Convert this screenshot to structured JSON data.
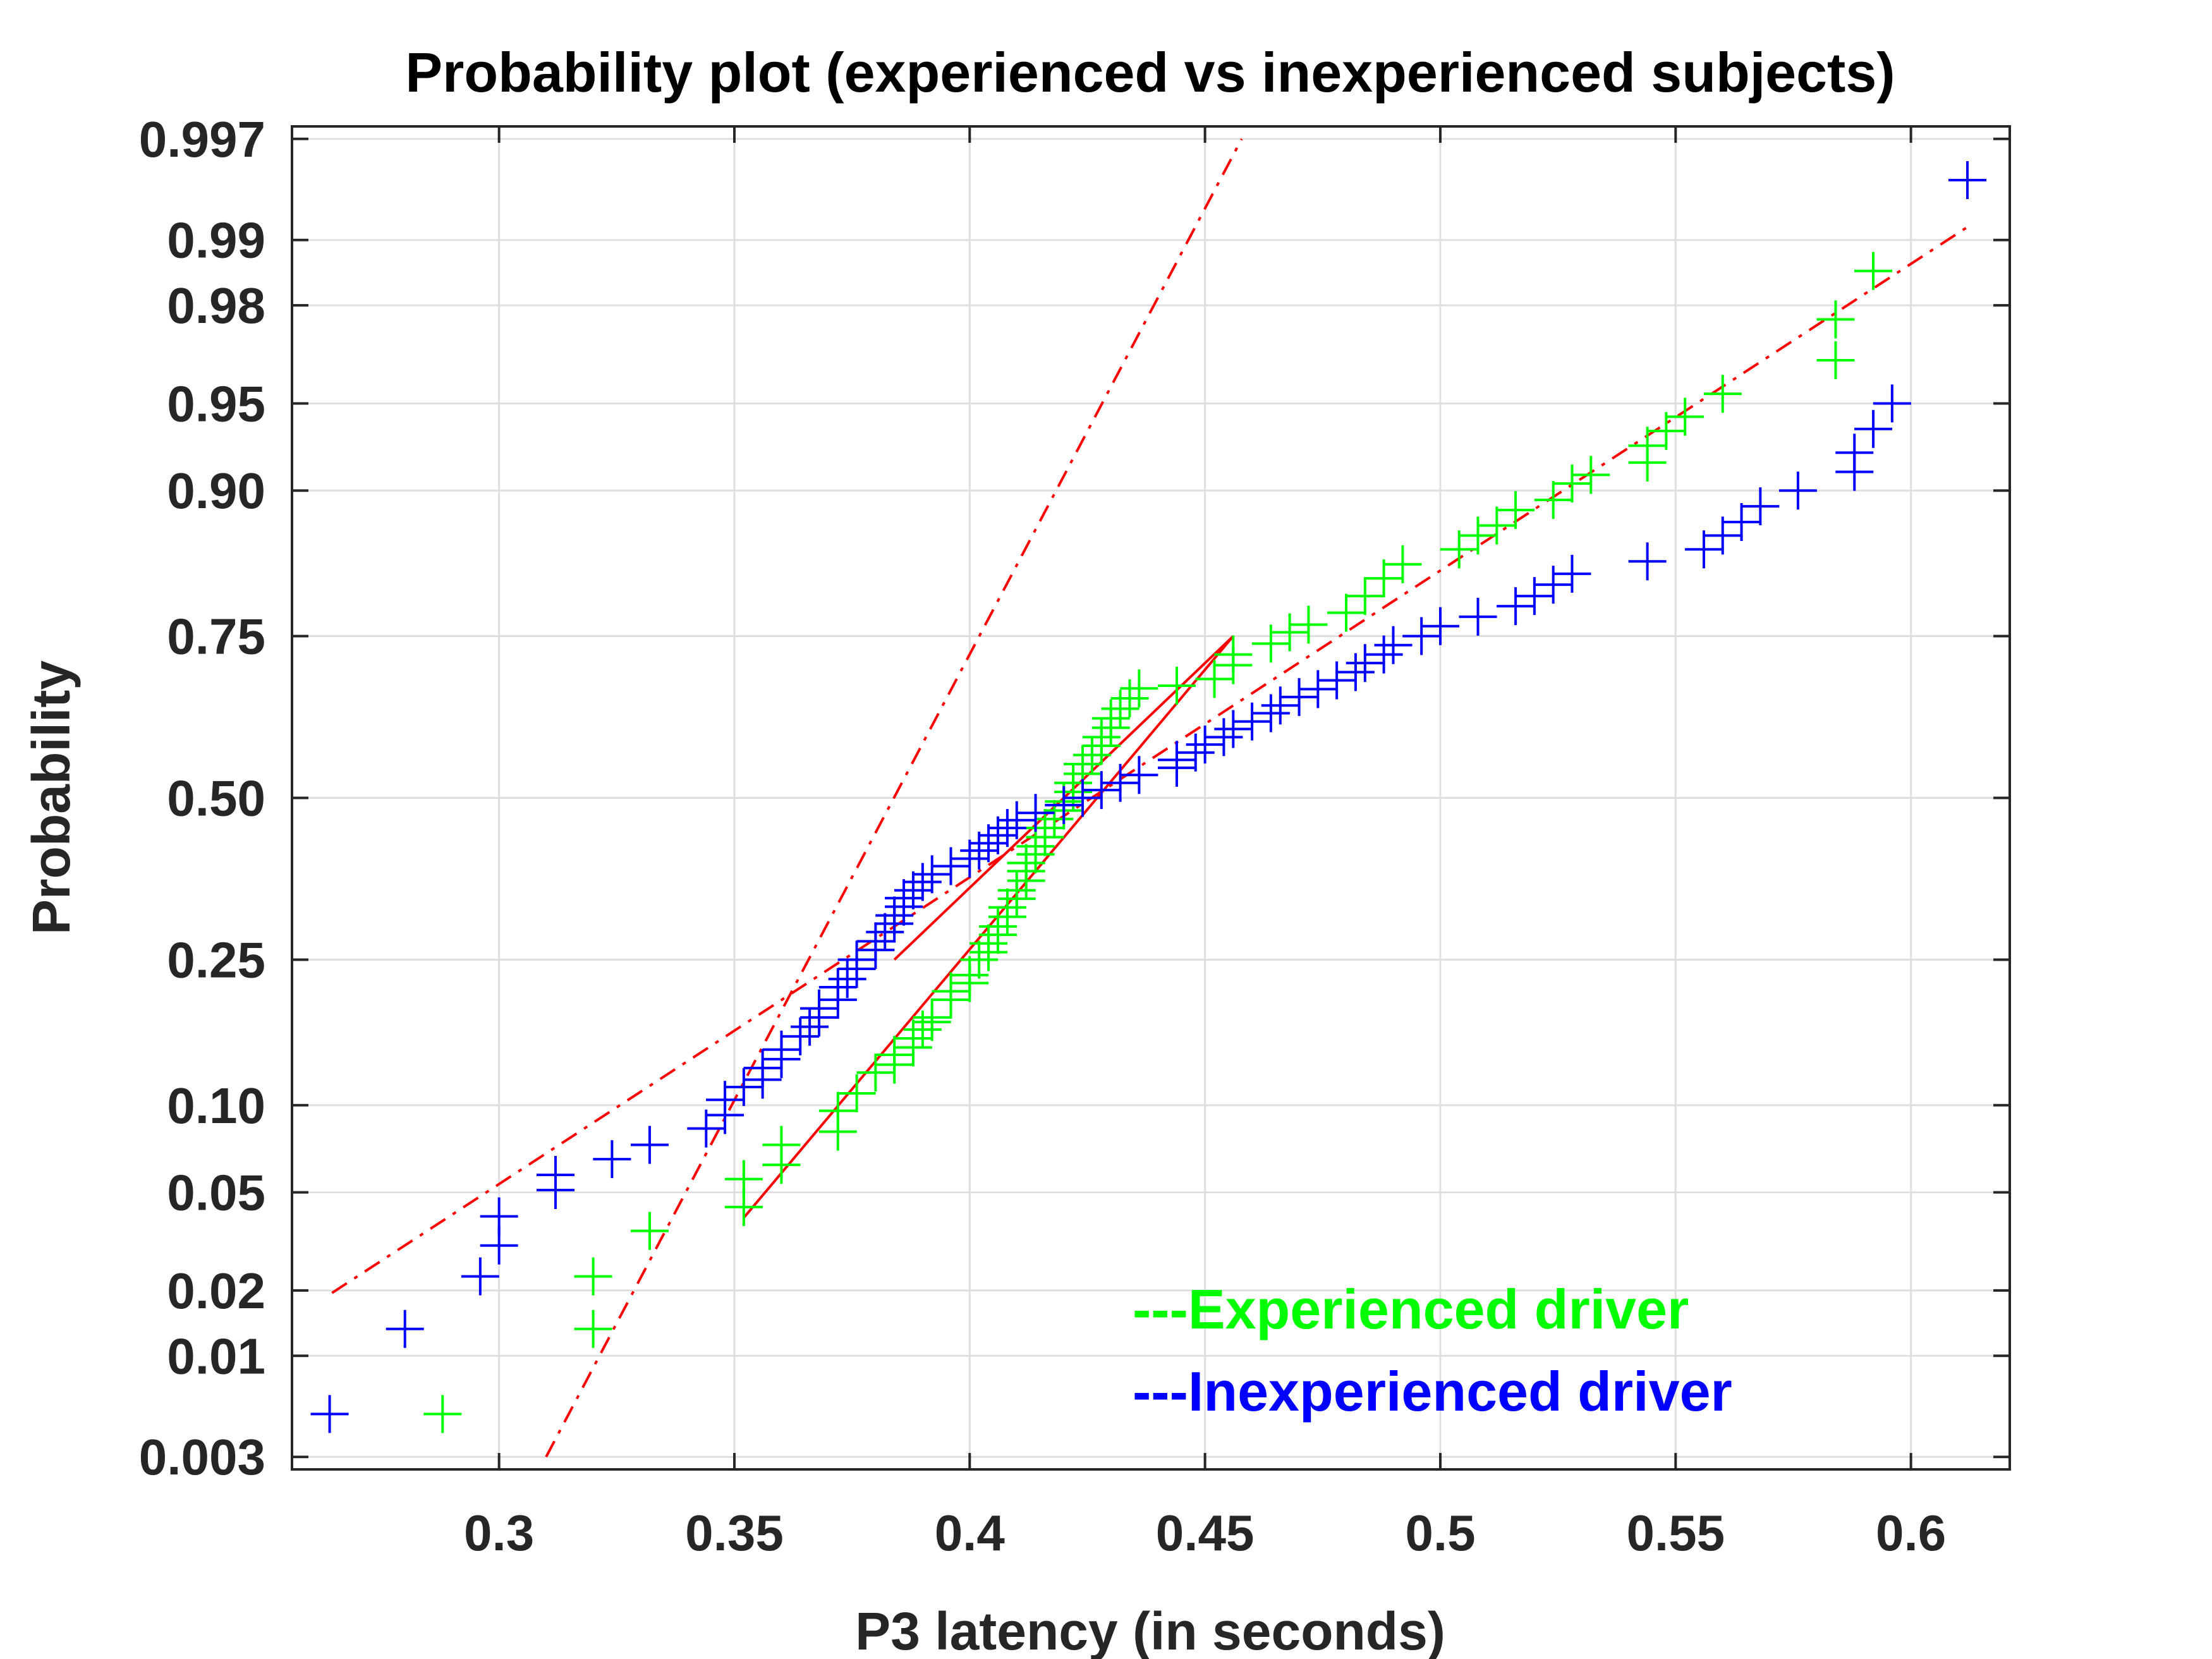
{
  "chart_data": {
    "type": "scatter",
    "title": "Probability plot (experienced vs inexperienced subjects)",
    "xlabel": "P3 latency (in seconds)",
    "ylabel": "Probability",
    "xlim": [
      0.256,
      0.621
    ],
    "x_ticks": [
      0.3,
      0.35,
      0.4,
      0.45,
      0.5,
      0.55,
      0.6
    ],
    "x_tick_labels": [
      "0.3",
      "0.35",
      "0.4",
      "0.45",
      "0.5",
      "0.55",
      "0.6"
    ],
    "y_scale": "normal-probability",
    "y_ticks": [
      0.003,
      0.01,
      0.02,
      0.05,
      0.1,
      0.25,
      0.5,
      0.75,
      0.9,
      0.95,
      0.98,
      0.99,
      0.997
    ],
    "y_tick_labels": [
      "0.003",
      "0.01",
      "0.02",
      "0.05",
      "0.10",
      "0.25",
      "0.50",
      "0.75",
      "0.90",
      "0.95",
      "0.98",
      "0.99",
      "0.997"
    ],
    "grid": true,
    "legend": {
      "position": "bottom-right",
      "entries": [
        {
          "label": "---Experienced driver",
          "color": "#00ff00"
        },
        {
          "label": "---Inexperienced driver",
          "color": "#0000ff"
        }
      ]
    },
    "series": [
      {
        "name": "Experienced driver",
        "color": "#00ff00",
        "marker": "+",
        "x": [
          0.288,
          0.32,
          0.32,
          0.332,
          0.352,
          0.352,
          0.36,
          0.36,
          0.372,
          0.372,
          0.376,
          0.38,
          0.384,
          0.384,
          0.388,
          0.388,
          0.39,
          0.392,
          0.392,
          0.396,
          0.396,
          0.4,
          0.4,
          0.402,
          0.404,
          0.404,
          0.406,
          0.406,
          0.408,
          0.408,
          0.41,
          0.41,
          0.412,
          0.412,
          0.412,
          0.414,
          0.414,
          0.416,
          0.416,
          0.418,
          0.42,
          0.42,
          0.422,
          0.422,
          0.424,
          0.424,
          0.426,
          0.428,
          0.428,
          0.43,
          0.43,
          0.432,
          0.434,
          0.436,
          0.444,
          0.452,
          0.456,
          0.456,
          0.464,
          0.468,
          0.472,
          0.48,
          0.484,
          0.488,
          0.492,
          0.504,
          0.508,
          0.512,
          0.516,
          0.524,
          0.528,
          0.532,
          0.544,
          0.544,
          0.548,
          0.552,
          0.56,
          0.584,
          0.584,
          0.592
        ],
        "p": [
          0.0051,
          0.0134,
          0.023,
          0.0355,
          0.044,
          0.056,
          0.063,
          0.074,
          0.082,
          0.096,
          0.109,
          0.126,
          0.133,
          0.142,
          0.149,
          0.158,
          0.167,
          0.175,
          0.18,
          0.2,
          0.21,
          0.22,
          0.23,
          0.25,
          0.26,
          0.272,
          0.284,
          0.296,
          0.31,
          0.324,
          0.337,
          0.35,
          0.365,
          0.38,
          0.393,
          0.407,
          0.42,
          0.435,
          0.45,
          0.465,
          0.479,
          0.494,
          0.51,
          0.525,
          0.54,
          0.556,
          0.571,
          0.586,
          0.6,
          0.615,
          0.63,
          0.645,
          0.661,
          0.676,
          0.68,
          0.69,
          0.71,
          0.725,
          0.74,
          0.755,
          0.765,
          0.78,
          0.8,
          0.82,
          0.835,
          0.85,
          0.863,
          0.872,
          0.885,
          0.893,
          0.905,
          0.911,
          0.919,
          0.929,
          0.937,
          0.944,
          0.954,
          0.966,
          0.977,
          0.986
        ]
      },
      {
        "name": "Inexperienced driver",
        "color": "#0000ff",
        "marker": "+",
        "x": [
          0.264,
          0.28,
          0.296,
          0.3,
          0.3,
          0.312,
          0.312,
          0.324,
          0.332,
          0.344,
          0.348,
          0.348,
          0.352,
          0.356,
          0.356,
          0.36,
          0.36,
          0.364,
          0.366,
          0.368,
          0.368,
          0.372,
          0.372,
          0.374,
          0.376,
          0.376,
          0.38,
          0.38,
          0.382,
          0.384,
          0.384,
          0.386,
          0.386,
          0.388,
          0.39,
          0.392,
          0.396,
          0.4,
          0.402,
          0.404,
          0.406,
          0.408,
          0.41,
          0.414,
          0.42,
          0.424,
          0.428,
          0.432,
          0.436,
          0.444,
          0.444,
          0.448,
          0.45,
          0.454,
          0.456,
          0.46,
          0.464,
          0.466,
          0.47,
          0.474,
          0.478,
          0.482,
          0.484,
          0.488,
          0.49,
          0.496,
          0.5,
          0.508,
          0.516,
          0.52,
          0.524,
          0.528,
          0.544,
          0.556,
          0.56,
          0.564,
          0.568,
          0.576,
          0.588,
          0.588,
          0.592,
          0.596,
          0.612
        ],
        "p": [
          0.0051,
          0.0134,
          0.023,
          0.031,
          0.0405,
          0.051,
          0.058,
          0.066,
          0.074,
          0.084,
          0.093,
          0.104,
          0.114,
          0.12,
          0.13,
          0.138,
          0.147,
          0.16,
          0.17,
          0.18,
          0.19,
          0.2,
          0.215,
          0.225,
          0.238,
          0.25,
          0.263,
          0.275,
          0.288,
          0.3,
          0.312,
          0.325,
          0.338,
          0.35,
          0.363,
          0.375,
          0.388,
          0.4,
          0.413,
          0.425,
          0.438,
          0.45,
          0.463,
          0.475,
          0.488,
          0.5,
          0.513,
          0.525,
          0.538,
          0.55,
          0.563,
          0.575,
          0.588,
          0.6,
          0.613,
          0.625,
          0.638,
          0.65,
          0.663,
          0.675,
          0.688,
          0.7,
          0.713,
          0.725,
          0.738,
          0.75,
          0.763,
          0.775,
          0.788,
          0.8,
          0.813,
          0.825,
          0.838,
          0.85,
          0.863,
          0.875,
          0.888,
          0.9,
          0.913,
          0.925,
          0.938,
          0.95,
          0.995
        ]
      }
    ],
    "reference_lines": [
      {
        "name": "Experienced fit",
        "color": "#ff0000",
        "style": "dash-dot",
        "x": [
          0.31,
          0.4578
        ],
        "p": [
          0.003,
          0.997
        ]
      },
      {
        "name": "Inexperienced fit",
        "color": "#ff0000",
        "style": "dash-dot",
        "x": [
          0.2645,
          0.6125
        ],
        "p": [
          0.0195,
          0.9915
        ]
      }
    ],
    "quartile_lines": [
      {
        "name": "Experienced fit (solid)",
        "color": "#ff0000",
        "x": [
          0.352,
          0.456
        ],
        "p": [
          0.04,
          0.75
        ]
      },
      {
        "name": "Inexperienced fit (solid)",
        "color": "#ff0000",
        "x": [
          0.384,
          0.456
        ],
        "p": [
          0.25,
          0.75
        ]
      }
    ]
  }
}
